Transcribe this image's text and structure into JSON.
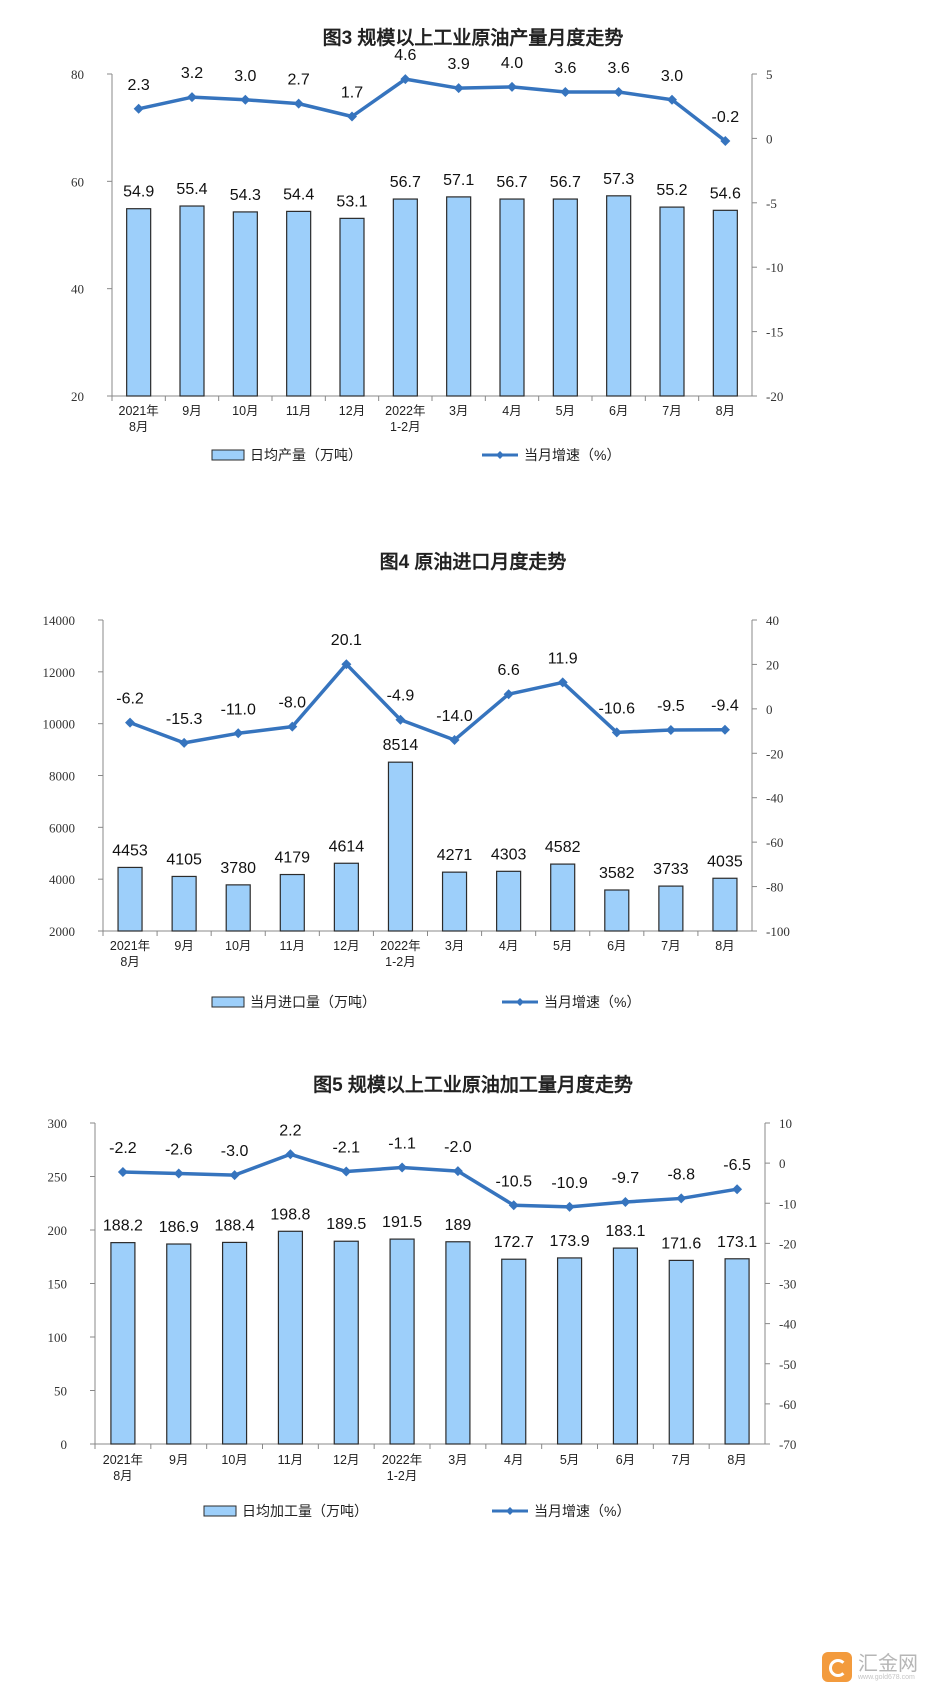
{
  "colors": {
    "bar": "#9DCFFA",
    "bar_stroke": "#2b2b2b",
    "line": "#3674BE",
    "axis": "#888888"
  },
  "watermark": {
    "text": "汇金网",
    "url_text": "www.gold678.com"
  },
  "chart_data": [
    {
      "type": "bar+line",
      "title": "图3  规模以上工业原油产量月度走势",
      "categories": [
        "2021年\n8月",
        "9月",
        "10月",
        "11月",
        "12月",
        "2022年\n1-2月",
        "3月",
        "4月",
        "5月",
        "6月",
        "7月",
        "8月"
      ],
      "series": [
        {
          "name": "日均产量（万吨）",
          "type": "bar",
          "axis": "left",
          "values": [
            54.9,
            55.4,
            54.3,
            54.4,
            53.1,
            56.7,
            57.1,
            56.7,
            56.7,
            57.3,
            55.2,
            54.6
          ]
        },
        {
          "name": "当月增速（%）",
          "type": "line",
          "axis": "right",
          "values": [
            2.3,
            3.2,
            3.0,
            2.7,
            1.7,
            4.6,
            3.9,
            4.0,
            3.6,
            3.6,
            3.0,
            -0.2
          ]
        }
      ],
      "ylim_left": [
        20,
        80
      ],
      "yticks_left": [
        20,
        40,
        60,
        80
      ],
      "ylim_right": [
        -20,
        5
      ],
      "yticks_right": [
        -20,
        -15,
        -10,
        -5,
        0,
        5
      ],
      "legend": "bottom",
      "grid": false
    },
    {
      "type": "bar+line",
      "title": "图4  原油进口月度走势",
      "categories": [
        "2021年\n8月",
        "9月",
        "10月",
        "11月",
        "12月",
        "2022年\n1-2月",
        "3月",
        "4月",
        "5月",
        "6月",
        "7月",
        "8月"
      ],
      "series": [
        {
          "name": "当月进口量（万吨）",
          "type": "bar",
          "axis": "left",
          "values": [
            4453,
            4105,
            3780,
            4179,
            4614,
            8514,
            4271,
            4303,
            4582,
            3582,
            3733,
            4035
          ]
        },
        {
          "name": "当月增速（%）",
          "type": "line",
          "axis": "right",
          "values": [
            -6.2,
            -15.3,
            -11.0,
            -8.0,
            20.1,
            -4.9,
            -14.0,
            6.6,
            11.9,
            -10.6,
            -9.5,
            -9.4
          ]
        }
      ],
      "ylim_left": [
        2000,
        14000
      ],
      "yticks_left": [
        2000,
        4000,
        6000,
        8000,
        10000,
        12000,
        14000
      ],
      "ylim_right": [
        -100,
        40
      ],
      "yticks_right": [
        -100,
        -80,
        -60,
        -40,
        -20,
        0,
        20,
        40
      ],
      "legend": "bottom",
      "grid": false
    },
    {
      "type": "bar+line",
      "title": "图5  规模以上工业原油加工量月度走势",
      "categories": [
        "2021年\n8月",
        "9月",
        "10月",
        "11月",
        "12月",
        "2022年\n1-2月",
        "3月",
        "4月",
        "5月",
        "6月",
        "7月",
        "8月"
      ],
      "series": [
        {
          "name": "日均加工量（万吨）",
          "type": "bar",
          "axis": "left",
          "values": [
            188.2,
            186.9,
            188.4,
            198.8,
            189.5,
            191.5,
            189.0,
            172.7,
            173.9,
            183.1,
            171.6,
            173.1
          ]
        },
        {
          "name": "当月增速（%）",
          "type": "line",
          "axis": "right",
          "values": [
            -2.2,
            -2.6,
            -3.0,
            2.2,
            -2.1,
            -1.1,
            -2.0,
            -10.5,
            -10.9,
            -9.7,
            -8.8,
            -6.5
          ]
        }
      ],
      "ylim_left": [
        0,
        300
      ],
      "yticks_left": [
        0,
        50,
        100,
        150,
        200,
        250,
        300
      ],
      "ylim_right": [
        -70,
        10
      ],
      "yticks_right": [
        -70,
        -60,
        -50,
        -40,
        -30,
        -20,
        -10,
        0,
        10
      ],
      "legend": "bottom",
      "grid": false
    }
  ]
}
